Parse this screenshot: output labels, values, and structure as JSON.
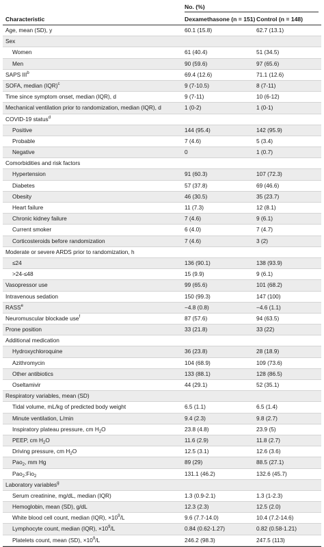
{
  "header": {
    "group": "No. (%)",
    "col0": "Characteristic",
    "col1": "Dexamethasone (n = 151)",
    "col2": "Control (n = 148)"
  },
  "rows": [
    {
      "label": "Age, mean (SD), y",
      "v1": "60.1 (15.8)",
      "v2": "62.7 (13.1)"
    },
    {
      "label": "Sex",
      "v1": "",
      "v2": ""
    },
    {
      "label": "Women",
      "v1": "61 (40.4)",
      "v2": "51 (34.5)",
      "ind": true
    },
    {
      "label": "Men",
      "v1": "90 (59.6)",
      "v2": "97 (65.6)",
      "ind": true
    },
    {
      "label": "SAPS III",
      "sup": "b",
      "v1": "69.4 (12.6)",
      "v2": "71.1 (12.6)"
    },
    {
      "label": "SOFA, median (IQR)",
      "sup": "c",
      "v1": "9 (7-10.5)",
      "v2": "8 (7-11)"
    },
    {
      "label": "Time since symptom onset, median (IQR), d",
      "v1": "9 (7-11)",
      "v2": "10 (6-12)"
    },
    {
      "label": "Mechanical ventilation prior to randomization, median (IQR), d",
      "v1": "1 (0-2)",
      "v2": "1 (0-1)"
    },
    {
      "label": "COVID-19 status",
      "sup": "d",
      "v1": "",
      "v2": ""
    },
    {
      "label": "Positive",
      "v1": "144 (95.4)",
      "v2": "142 (95.9)",
      "ind": true
    },
    {
      "label": "Probable",
      "v1": "7 (4.6)",
      "v2": "5 (3.4)",
      "ind": true
    },
    {
      "label": "Negative",
      "v1": "0",
      "v2": "1 (0.7)",
      "ind": true
    },
    {
      "label": "Comorbidities and risk factors",
      "v1": "",
      "v2": ""
    },
    {
      "label": "Hypertension",
      "v1": "91 (60.3)",
      "v2": "107 (72.3)",
      "ind": true
    },
    {
      "label": "Diabetes",
      "v1": "57 (37.8)",
      "v2": "69 (46.6)",
      "ind": true
    },
    {
      "label": "Obesity",
      "v1": "46 (30.5)",
      "v2": "35 (23.7)",
      "ind": true
    },
    {
      "label": "Heart failure",
      "v1": "11 (7.3)",
      "v2": "12 (8.1)",
      "ind": true
    },
    {
      "label": "Chronic kidney failure",
      "v1": "7 (4.6)",
      "v2": "9 (6.1)",
      "ind": true
    },
    {
      "label": "Current smoker",
      "v1": "6 (4.0)",
      "v2": "7 (4.7)",
      "ind": true
    },
    {
      "label": "Corticosteroids before randomization",
      "v1": "7 (4.6)",
      "v2": "3 (2)",
      "ind": true
    },
    {
      "label": "Moderate or severe ARDS prior to randomization, h",
      "v1": "",
      "v2": ""
    },
    {
      "label": "≤24",
      "v1": "136 (90.1)",
      "v2": "138 (93.9)",
      "ind": true
    },
    {
      "label": ">24-≤48",
      "v1": "15 (9.9)",
      "v2": "9 (6.1)",
      "ind": true
    },
    {
      "label": "Vasopressor use",
      "v1": "99 (65.6)",
      "v2": "101 (68.2)"
    },
    {
      "label": "Intravenous sedation",
      "v1": "150 (99.3)",
      "v2": "147 (100)"
    },
    {
      "label": "RASS",
      "sup": "e",
      "v1": "−4.8 (0.8)",
      "v2": "−4.6 (1.1)"
    },
    {
      "label": "Neuromuscular blockade use",
      "sup": "f",
      "v1": "87 (57.6)",
      "v2": "94 (63.5)"
    },
    {
      "label": "Prone position",
      "v1": "33 (21.8)",
      "v2": "33 (22)"
    },
    {
      "label": "Additional medication",
      "v1": "",
      "v2": ""
    },
    {
      "label": "Hydroxychloroquine",
      "v1": "36 (23.8)",
      "v2": "28 (18.9)",
      "ind": true
    },
    {
      "label": "Azithromycin",
      "v1": "104 (68.9)",
      "v2": "109 (73.6)",
      "ind": true
    },
    {
      "label": "Other antibiotics",
      "v1": "133 (88.1)",
      "v2": "128 (86.5)",
      "ind": true
    },
    {
      "label": "Oseltamivir",
      "v1": "44 (29.1)",
      "v2": "52 (35.1)",
      "ind": true
    },
    {
      "label": "Respiratory variables, mean (SD)",
      "v1": "",
      "v2": ""
    },
    {
      "label": "Tidal volume, mL/kg of predicted body weight",
      "v1": "6.5 (1.1)",
      "v2": "6.5 (1.4)",
      "ind": true
    },
    {
      "label": "Minute ventilation, L/min",
      "v1": "9.4 (2.3)",
      "v2": "9.8 (2.7)",
      "ind": true
    },
    {
      "label": "Inspiratory plateau pressure, cm H",
      "sub": "2",
      "tail": "O",
      "v1": "23.8 (4.8)",
      "v2": "23.9 (5)",
      "ind": true
    },
    {
      "label": "PEEP, cm H",
      "sub": "2",
      "tail": "O",
      "v1": "11.6 (2.9)",
      "v2": "11.8 (2.7)",
      "ind": true
    },
    {
      "label": "Driving pressure, cm H",
      "sub": "2",
      "tail": "O",
      "v1": "12.5 (3.1)",
      "v2": "12.6 (3.6)",
      "ind": true
    },
    {
      "label": "Pao",
      "sub": "2",
      "tail": ", mm Hg",
      "v1": "89 (29)",
      "v2": "88.5 (27.1)",
      "ind": true
    },
    {
      "label": "Pao",
      "sub": "2",
      "tail": ":Fio",
      "sub2": "2",
      "v1": "131.1 (46.2)",
      "v2": "132.6 (45.7)",
      "ind": true
    },
    {
      "label": "Laboratory variables",
      "sup": "g",
      "v1": "",
      "v2": ""
    },
    {
      "label": "Serum creatinine, mg/dL, median (IQR)",
      "v1": "1.3 (0.9-2.1)",
      "v2": "1.3 (1-2.3)",
      "ind": true
    },
    {
      "label": "Hemoglobin, mean (SD), g/dL",
      "v1": "12.3 (2.3)",
      "v2": "12.5 (2.0)",
      "ind": true
    },
    {
      "label": "White blood cell count, median (IQR), ×10",
      "sup": "9",
      "tail": "/L",
      "v1": "9.6 (7.7-14.0)",
      "v2": "10.4 (7.2-14.6)",
      "ind": true
    },
    {
      "label": "Lymphocyte count, median (IQR), ×10",
      "sup": "9",
      "tail": "/L",
      "v1": "0.84 (0.62-1.27)",
      "v2": "0.82 (0.58-1.21)",
      "ind": true
    },
    {
      "label": "Platelets count, mean (SD), ×10",
      "sup": "9",
      "tail": "/L",
      "v1": "246.2 (98.3)",
      "v2": "247.5 (113)",
      "ind": true
    }
  ]
}
